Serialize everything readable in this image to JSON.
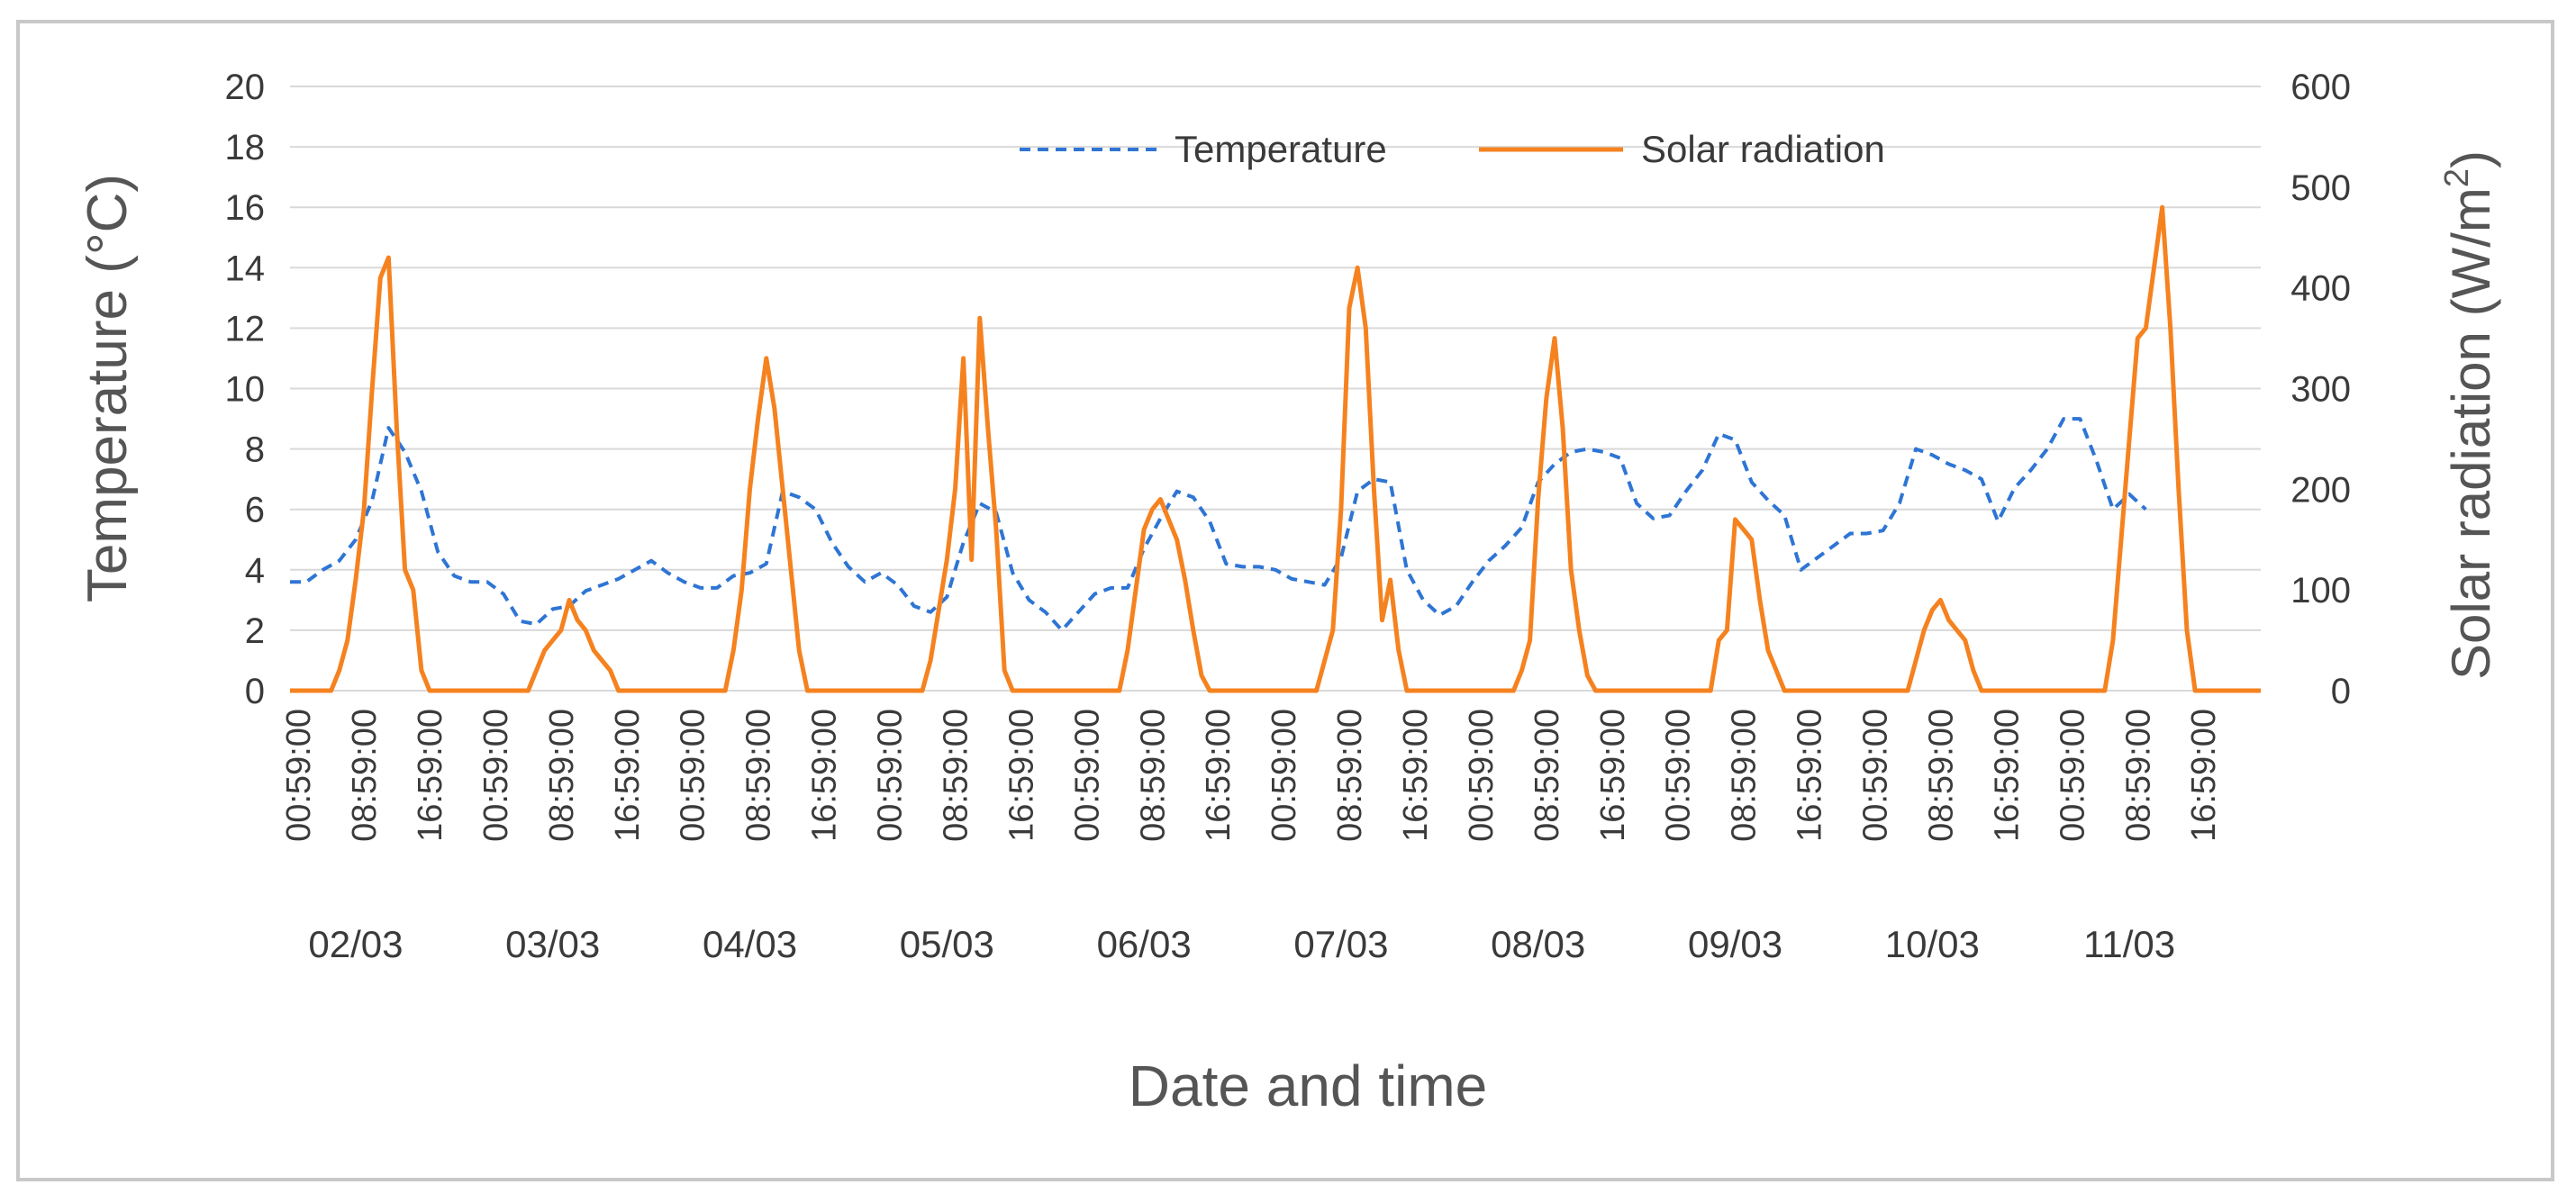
{
  "chart_data": {
    "type": "line",
    "title": "",
    "xlabel": "Date and time",
    "ylabel_left": "Temperature  (°C)",
    "ylabel_right_base": "Solar radiation (W/m",
    "ylabel_right_sup": "2",
    "ylabel_right_close": ")",
    "ylim_left": [
      0,
      20
    ],
    "ylim_right": [
      0,
      600
    ],
    "yticks_left": [
      "0",
      "2",
      "4",
      "6",
      "8",
      "10",
      "12",
      "14",
      "16",
      "18",
      "20"
    ],
    "yticks_right": [
      "0",
      "100",
      "200",
      "300",
      "400",
      "500",
      "600"
    ],
    "time_tick_labels": [
      "00:59:00",
      "08:59:00",
      "16:59:00"
    ],
    "days": [
      "02/03",
      "03/03",
      "04/03",
      "05/03",
      "06/03",
      "07/03",
      "08/03",
      "09/03",
      "10/03",
      "11/03"
    ],
    "x_hours_total": 240,
    "legend": [
      "Temperature",
      "Solar radiation"
    ],
    "legend_position": "top-center",
    "grid": true,
    "colors": {
      "temperature": "#2e75d4",
      "solar": "#f5821f",
      "grid": "#d9d9d9",
      "text": "#3a3a3a"
    },
    "series": [
      {
        "name": "Temperature",
        "axis": "left",
        "style": "dashed",
        "points": [
          [
            0,
            3.6
          ],
          [
            2,
            3.6
          ],
          [
            4,
            4.0
          ],
          [
            6,
            4.3
          ],
          [
            8,
            5.0
          ],
          [
            10,
            6.3
          ],
          [
            12,
            8.7
          ],
          [
            14,
            7.9
          ],
          [
            16,
            6.6
          ],
          [
            18,
            4.6
          ],
          [
            20,
            3.8
          ],
          [
            22,
            3.6
          ],
          [
            24,
            3.6
          ],
          [
            26,
            3.2
          ],
          [
            28,
            2.3
          ],
          [
            30,
            2.2
          ],
          [
            32,
            2.7
          ],
          [
            34,
            2.8
          ],
          [
            36,
            3.3
          ],
          [
            38,
            3.5
          ],
          [
            40,
            3.7
          ],
          [
            42,
            4.0
          ],
          [
            44,
            4.3
          ],
          [
            46,
            3.9
          ],
          [
            48,
            3.6
          ],
          [
            50,
            3.4
          ],
          [
            52,
            3.4
          ],
          [
            54,
            3.8
          ],
          [
            56,
            3.9
          ],
          [
            58,
            4.2
          ],
          [
            60,
            6.6
          ],
          [
            62,
            6.4
          ],
          [
            64,
            6.0
          ],
          [
            66,
            4.9
          ],
          [
            68,
            4.1
          ],
          [
            70,
            3.6
          ],
          [
            72,
            3.9
          ],
          [
            74,
            3.5
          ],
          [
            76,
            2.8
          ],
          [
            78,
            2.6
          ],
          [
            80,
            3.1
          ],
          [
            82,
            4.9
          ],
          [
            84,
            6.2
          ],
          [
            86,
            5.9
          ],
          [
            88,
            3.9
          ],
          [
            90,
            3.0
          ],
          [
            92,
            2.6
          ],
          [
            94,
            2.0
          ],
          [
            96,
            2.6
          ],
          [
            98,
            3.2
          ],
          [
            100,
            3.4
          ],
          [
            102,
            3.4
          ],
          [
            104,
            4.7
          ],
          [
            106,
            5.7
          ],
          [
            108,
            6.6
          ],
          [
            110,
            6.4
          ],
          [
            112,
            5.6
          ],
          [
            114,
            4.2
          ],
          [
            116,
            4.1
          ],
          [
            118,
            4.1
          ],
          [
            120,
            4.0
          ],
          [
            122,
            3.7
          ],
          [
            124,
            3.6
          ],
          [
            126,
            3.5
          ],
          [
            128,
            4.4
          ],
          [
            130,
            6.6
          ],
          [
            132,
            7.0
          ],
          [
            134,
            6.9
          ],
          [
            136,
            4.0
          ],
          [
            138,
            3.0
          ],
          [
            140,
            2.5
          ],
          [
            142,
            2.8
          ],
          [
            144,
            3.6
          ],
          [
            146,
            4.3
          ],
          [
            148,
            4.8
          ],
          [
            150,
            5.4
          ],
          [
            152,
            6.9
          ],
          [
            154,
            7.5
          ],
          [
            156,
            7.9
          ],
          [
            158,
            8.0
          ],
          [
            160,
            7.9
          ],
          [
            162,
            7.7
          ],
          [
            164,
            6.2
          ],
          [
            166,
            5.7
          ],
          [
            168,
            5.8
          ],
          [
            170,
            6.6
          ],
          [
            172,
            7.3
          ],
          [
            174,
            8.5
          ],
          [
            176,
            8.3
          ],
          [
            178,
            6.9
          ],
          [
            180,
            6.3
          ],
          [
            182,
            5.8
          ],
          [
            184,
            4.0
          ],
          [
            186,
            4.4
          ],
          [
            188,
            4.8
          ],
          [
            190,
            5.2
          ],
          [
            192,
            5.2
          ],
          [
            194,
            5.3
          ],
          [
            196,
            6.2
          ],
          [
            198,
            8.0
          ],
          [
            200,
            7.8
          ],
          [
            202,
            7.5
          ],
          [
            204,
            7.3
          ],
          [
            206,
            7.0
          ],
          [
            208,
            5.6
          ],
          [
            210,
            6.7
          ],
          [
            212,
            7.3
          ],
          [
            214,
            8.0
          ],
          [
            216,
            9.0
          ],
          [
            218,
            9.0
          ],
          [
            220,
            7.6
          ],
          [
            222,
            6.0
          ],
          [
            224,
            6.5
          ],
          [
            226,
            6.0
          ]
        ]
      },
      {
        "name": "Solar radiation",
        "axis": "right",
        "style": "solid",
        "points": [
          [
            0,
            0
          ],
          [
            5,
            0
          ],
          [
            6,
            20
          ],
          [
            7,
            50
          ],
          [
            8,
            110
          ],
          [
            9,
            180
          ],
          [
            10,
            300
          ],
          [
            11,
            410
          ],
          [
            12,
            430
          ],
          [
            13,
            260
          ],
          [
            14,
            120
          ],
          [
            15,
            100
          ],
          [
            16,
            20
          ],
          [
            17,
            0
          ],
          [
            29,
            0
          ],
          [
            30,
            20
          ],
          [
            31,
            40
          ],
          [
            32,
            50
          ],
          [
            33,
            60
          ],
          [
            34,
            90
          ],
          [
            35,
            70
          ],
          [
            36,
            60
          ],
          [
            37,
            40
          ],
          [
            38,
            30
          ],
          [
            39,
            20
          ],
          [
            40,
            0
          ],
          [
            53,
            0
          ],
          [
            54,
            40
          ],
          [
            55,
            100
          ],
          [
            56,
            200
          ],
          [
            57,
            270
          ],
          [
            58,
            330
          ],
          [
            59,
            280
          ],
          [
            60,
            200
          ],
          [
            61,
            120
          ],
          [
            62,
            40
          ],
          [
            63,
            0
          ],
          [
            77,
            0
          ],
          [
            78,
            30
          ],
          [
            79,
            80
          ],
          [
            80,
            130
          ],
          [
            81,
            200
          ],
          [
            82,
            330
          ],
          [
            83,
            130
          ],
          [
            84,
            370
          ],
          [
            85,
            260
          ],
          [
            86,
            160
          ],
          [
            87,
            20
          ],
          [
            88,
            0
          ],
          [
            101,
            0
          ],
          [
            102,
            40
          ],
          [
            103,
            100
          ],
          [
            104,
            160
          ],
          [
            105,
            180
          ],
          [
            106,
            190
          ],
          [
            107,
            170
          ],
          [
            108,
            150
          ],
          [
            109,
            110
          ],
          [
            110,
            60
          ],
          [
            111,
            15
          ],
          [
            112,
            0
          ],
          [
            125,
            0
          ],
          [
            126,
            30
          ],
          [
            127,
            60
          ],
          [
            128,
            180
          ],
          [
            129,
            380
          ],
          [
            130,
            420
          ],
          [
            131,
            360
          ],
          [
            132,
            200
          ],
          [
            133,
            70
          ],
          [
            134,
            110
          ],
          [
            135,
            40
          ],
          [
            136,
            0
          ],
          [
            149,
            0
          ],
          [
            150,
            20
          ],
          [
            151,
            50
          ],
          [
            152,
            190
          ],
          [
            153,
            290
          ],
          [
            154,
            350
          ],
          [
            155,
            260
          ],
          [
            156,
            120
          ],
          [
            157,
            60
          ],
          [
            158,
            15
          ],
          [
            159,
            0
          ],
          [
            173,
            0
          ],
          [
            174,
            50
          ],
          [
            175,
            60
          ],
          [
            176,
            170
          ],
          [
            177,
            160
          ],
          [
            178,
            150
          ],
          [
            179,
            90
          ],
          [
            180,
            40
          ],
          [
            181,
            20
          ],
          [
            182,
            0
          ],
          [
            197,
            0
          ],
          [
            198,
            30
          ],
          [
            199,
            60
          ],
          [
            200,
            80
          ],
          [
            201,
            90
          ],
          [
            202,
            70
          ],
          [
            203,
            60
          ],
          [
            204,
            50
          ],
          [
            205,
            20
          ],
          [
            206,
            0
          ],
          [
            221,
            0
          ],
          [
            222,
            50
          ],
          [
            223,
            150
          ],
          [
            224,
            250
          ],
          [
            225,
            350
          ],
          [
            226,
            360
          ],
          [
            227,
            420
          ],
          [
            228,
            480
          ],
          [
            229,
            360
          ],
          [
            230,
            200
          ],
          [
            231,
            60
          ],
          [
            232,
            0
          ],
          [
            240,
            0
          ]
        ]
      }
    ]
  }
}
